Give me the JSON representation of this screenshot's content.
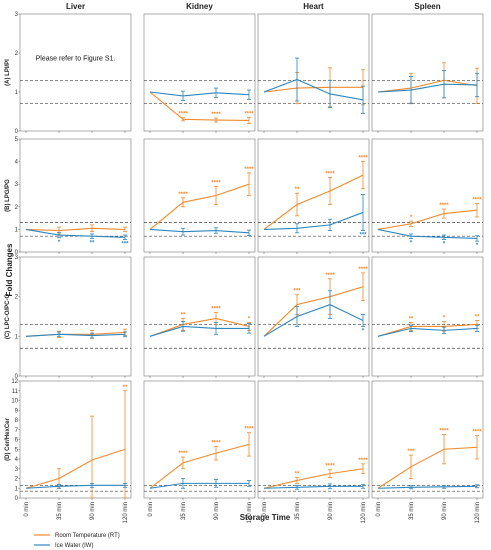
{
  "chart_data": {
    "type": "line",
    "ylabel": "Fold Changes",
    "xlabel": "Storage Time",
    "tissues": [
      "Liver",
      "Kidney",
      "Heart",
      "Spleen"
    ],
    "x": [
      "0 min",
      "35 min",
      "90 min",
      "120 min"
    ],
    "legend": {
      "placement": "bottom-left",
      "entries": [
        "Room Temperature (RT)",
        "Ice Water (IW)"
      ]
    },
    "colors": {
      "rt": "#F28A2E",
      "iw": "#2E86C1"
    },
    "grid": false,
    "rows": [
      {
        "label": "(A) LPI/PI",
        "ylim": [
          0,
          3
        ],
        "yticks": [
          0,
          1,
          2,
          3
        ],
        "ref_lines": [
          0.7,
          1.3
        ],
        "panels": [
          {
            "note": "Please refer to Figure S1."
          },
          {
            "rt": [
              1,
              0.3,
              0.28,
              0.27
            ],
            "rt_err": [
              0,
              0.04,
              0.05,
              0.08
            ],
            "rt_sig": [
              "",
              "****",
              "****",
              "****"
            ],
            "iw": [
              1,
              0.9,
              0.98,
              0.93
            ],
            "iw_err": [
              0,
              0.12,
              0.12,
              0.12
            ],
            "iw_sig": [
              "",
              "",
              "",
              ""
            ]
          },
          {
            "rt": [
              1,
              1.1,
              1.12,
              1.12
            ],
            "rt_err": [
              0,
              0.4,
              0.5,
              0.45
            ],
            "rt_sig": [
              "",
              "",
              "",
              ""
            ],
            "iw": [
              1,
              1.32,
              0.95,
              0.8
            ],
            "iw_err": [
              0,
              0.55,
              0.35,
              0.35
            ],
            "iw_sig": [
              "",
              "",
              "",
              ""
            ]
          },
          {
            "rt": [
              1,
              1.1,
              1.3,
              1.16
            ],
            "rt_err": [
              0,
              0.38,
              0.45,
              0.45
            ],
            "rt_sig": [
              "",
              "",
              "",
              ""
            ],
            "iw": [
              1,
              1.05,
              1.2,
              1.18
            ],
            "iw_err": [
              0,
              0.35,
              0.35,
              0.3
            ],
            "iw_sig": [
              "",
              "",
              "",
              ""
            ]
          }
        ]
      },
      {
        "label": "(B) LPG/PG",
        "ylim": [
          0,
          5
        ],
        "yticks": [
          0,
          1,
          2,
          3,
          4,
          5
        ],
        "ref_lines": [
          0.7,
          1.3
        ],
        "panels": [
          {
            "rt": [
              1,
              0.95,
              1.05,
              1.0
            ],
            "rt_err": [
              0,
              0.15,
              0.15,
              0.1
            ],
            "rt_sig": [
              "",
              "",
              "",
              ""
            ],
            "iw": [
              1,
              0.75,
              0.7,
              0.65
            ],
            "iw_err": [
              0,
              0.12,
              0.1,
              0.1
            ],
            "iw_sig": [
              "",
              "*",
              "**",
              "***"
            ]
          },
          {
            "rt": [
              1,
              2.2,
              2.5,
              3.0
            ],
            "rt_err": [
              0,
              0.2,
              0.4,
              0.5
            ],
            "rt_sig": [
              "",
              "****",
              "****",
              "****"
            ],
            "iw": [
              1,
              0.9,
              0.95,
              0.85
            ],
            "iw_err": [
              0,
              0.15,
              0.12,
              0.12
            ],
            "iw_sig": [
              "",
              "",
              "",
              ""
            ]
          },
          {
            "rt": [
              1,
              2.1,
              2.7,
              3.4
            ],
            "rt_err": [
              0,
              0.5,
              0.6,
              0.6
            ],
            "rt_sig": [
              "",
              "**",
              "****",
              "****"
            ],
            "iw": [
              1,
              1.05,
              1.2,
              1.75
            ],
            "iw_err": [
              0,
              0.2,
              0.25,
              0.8
            ],
            "iw_sig": [
              "",
              "",
              "",
              "***"
            ]
          },
          {
            "rt": [
              1,
              1.25,
              1.7,
              1.85
            ],
            "rt_err": [
              0,
              0.12,
              0.2,
              0.3
            ],
            "rt_sig": [
              "",
              "*",
              "****",
              "****"
            ],
            "iw": [
              1,
              0.7,
              0.65,
              0.6
            ],
            "iw_err": [
              0,
              0.1,
              0.1,
              0.12
            ],
            "iw_sig": [
              "",
              "*",
              "*",
              "*"
            ]
          }
        ]
      },
      {
        "label": "(C) LPC-O/PC-O",
        "ylim": [
          0,
          3
        ],
        "yticks": [
          0,
          1,
          2,
          3
        ],
        "ref_lines": [
          0.7,
          1.3
        ],
        "panels": [
          {
            "rt": [
              1,
              1.05,
              1.05,
              1.1
            ],
            "rt_err": [
              0,
              0.08,
              0.1,
              0.08
            ],
            "rt_sig": [
              "",
              "",
              "",
              ""
            ],
            "iw": [
              1,
              1.05,
              1.02,
              1.05
            ],
            "iw_err": [
              0,
              0.06,
              0.06,
              0.06
            ],
            "iw_sig": [
              "",
              "",
              "",
              ""
            ]
          },
          {
            "rt": [
              1,
              1.3,
              1.45,
              1.25
            ],
            "rt_err": [
              0,
              0.15,
              0.15,
              0.1
            ],
            "rt_sig": [
              "",
              "**",
              "****",
              "*"
            ],
            "iw": [
              1,
              1.25,
              1.2,
              1.2
            ],
            "iw_err": [
              0,
              0.12,
              0.15,
              0.12
            ],
            "iw_sig": [
              "",
              "",
              "",
              ""
            ]
          },
          {
            "rt": [
              1,
              1.8,
              2.0,
              2.25
            ],
            "rt_err": [
              0,
              0.25,
              0.45,
              0.35
            ],
            "rt_sig": [
              "",
              "***",
              "****",
              "****"
            ],
            "iw": [
              1,
              1.5,
              1.8,
              1.4
            ],
            "iw_err": [
              0,
              0.25,
              0.35,
              0.15
            ],
            "iw_sig": [
              "",
              "",
              "",
              "*"
            ]
          },
          {
            "rt": [
              1,
              1.25,
              1.25,
              1.3
            ],
            "rt_err": [
              0,
              0.1,
              0.12,
              0.1
            ],
            "rt_sig": [
              "",
              "**",
              "*",
              "**"
            ],
            "iw": [
              1,
              1.2,
              1.15,
              1.2
            ],
            "iw_err": [
              0,
              0.08,
              0.08,
              0.08
            ],
            "iw_sig": [
              "",
              "",
              "",
              ""
            ]
          }
        ]
      },
      {
        "label": "(D) Cer/HexCer",
        "ylim": [
          0,
          12
        ],
        "yticks": [
          0,
          1,
          2,
          3,
          4,
          5,
          6,
          7,
          8,
          9,
          10,
          11,
          12
        ],
        "ref_lines": [
          0.7,
          1.3
        ],
        "panels": [
          {
            "rt": [
              1,
              2.0,
              3.9,
              5.0
            ],
            "rt_err": [
              0,
              1.0,
              4.5,
              6.0
            ],
            "rt_sig": [
              "",
              "",
              "",
              "**"
            ],
            "iw": [
              1,
              1.2,
              1.3,
              1.3
            ],
            "iw_err": [
              0,
              0.2,
              0.2,
              0.2
            ],
            "iw_sig": [
              "",
              "",
              "",
              ""
            ]
          },
          {
            "rt": [
              1,
              3.6,
              4.6,
              5.5
            ],
            "rt_err": [
              0,
              0.6,
              0.7,
              1.2
            ],
            "rt_sig": [
              "",
              "****",
              "****",
              "****"
            ],
            "iw": [
              1,
              1.5,
              1.5,
              1.5
            ],
            "iw_err": [
              0,
              0.5,
              0.4,
              0.3
            ],
            "iw_sig": [
              "",
              "",
              "",
              ""
            ]
          },
          {
            "rt": [
              1,
              1.8,
              2.5,
              3.0
            ],
            "rt_err": [
              0,
              0.3,
              0.4,
              0.5
            ],
            "rt_sig": [
              "",
              "**",
              "****",
              "****"
            ],
            "iw": [
              1,
              1.1,
              1.2,
              1.2
            ],
            "iw_err": [
              0,
              0.2,
              0.25,
              0.2
            ],
            "iw_sig": [
              "",
              "",
              "",
              ""
            ]
          },
          {
            "rt": [
              1,
              3.2,
              5.0,
              5.2
            ],
            "rt_err": [
              0,
              1.2,
              1.5,
              1.2
            ],
            "rt_sig": [
              "",
              "***",
              "****",
              "****"
            ],
            "iw": [
              1,
              1.1,
              1.15,
              1.2
            ],
            "iw_err": [
              0,
              0.15,
              0.15,
              0.15
            ],
            "iw_sig": [
              "",
              "",
              "",
              ""
            ]
          }
        ]
      }
    ]
  }
}
